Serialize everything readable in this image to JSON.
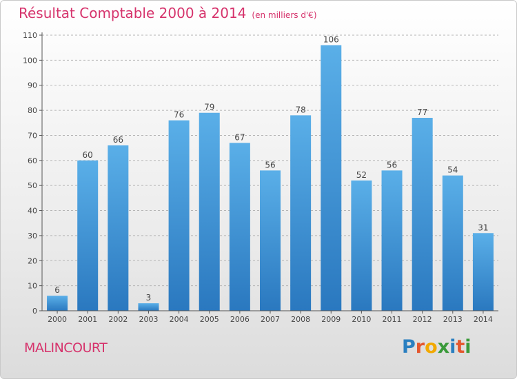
{
  "header": {
    "title": "Résultat Comptable 2000 à 2014",
    "subtitle": "(en milliers d'€)"
  },
  "footer": {
    "place": "MALINCOURT",
    "logo_letters": [
      "P",
      "r",
      "o",
      "x",
      "i",
      "t",
      "i"
    ],
    "logo_colors": [
      "#2a7fc0",
      "#e4572e",
      "#f2a900",
      "#3a9a3a",
      "#2a7fc0",
      "#e4572e",
      "#3a9a3a"
    ]
  },
  "chart_data": {
    "type": "bar",
    "title": "Résultat Comptable 2000 à 2014",
    "subtitle": "(en milliers d'€)",
    "xlabel": "",
    "ylabel": "",
    "categories": [
      "2000",
      "2001",
      "2002",
      "2003",
      "2004",
      "2005",
      "2006",
      "2007",
      "2008",
      "2009",
      "2010",
      "2011",
      "2012",
      "2013",
      "2014"
    ],
    "values": [
      6,
      60,
      66,
      3,
      76,
      79,
      67,
      56,
      78,
      106,
      52,
      56,
      77,
      54,
      31
    ],
    "ylim": [
      0,
      110
    ],
    "yticks": [
      0,
      10,
      20,
      30,
      40,
      50,
      60,
      70,
      80,
      90,
      100,
      110
    ],
    "grid": true,
    "bar_color": "#3a8fd6",
    "bar_highlight": "#5aafe8"
  }
}
